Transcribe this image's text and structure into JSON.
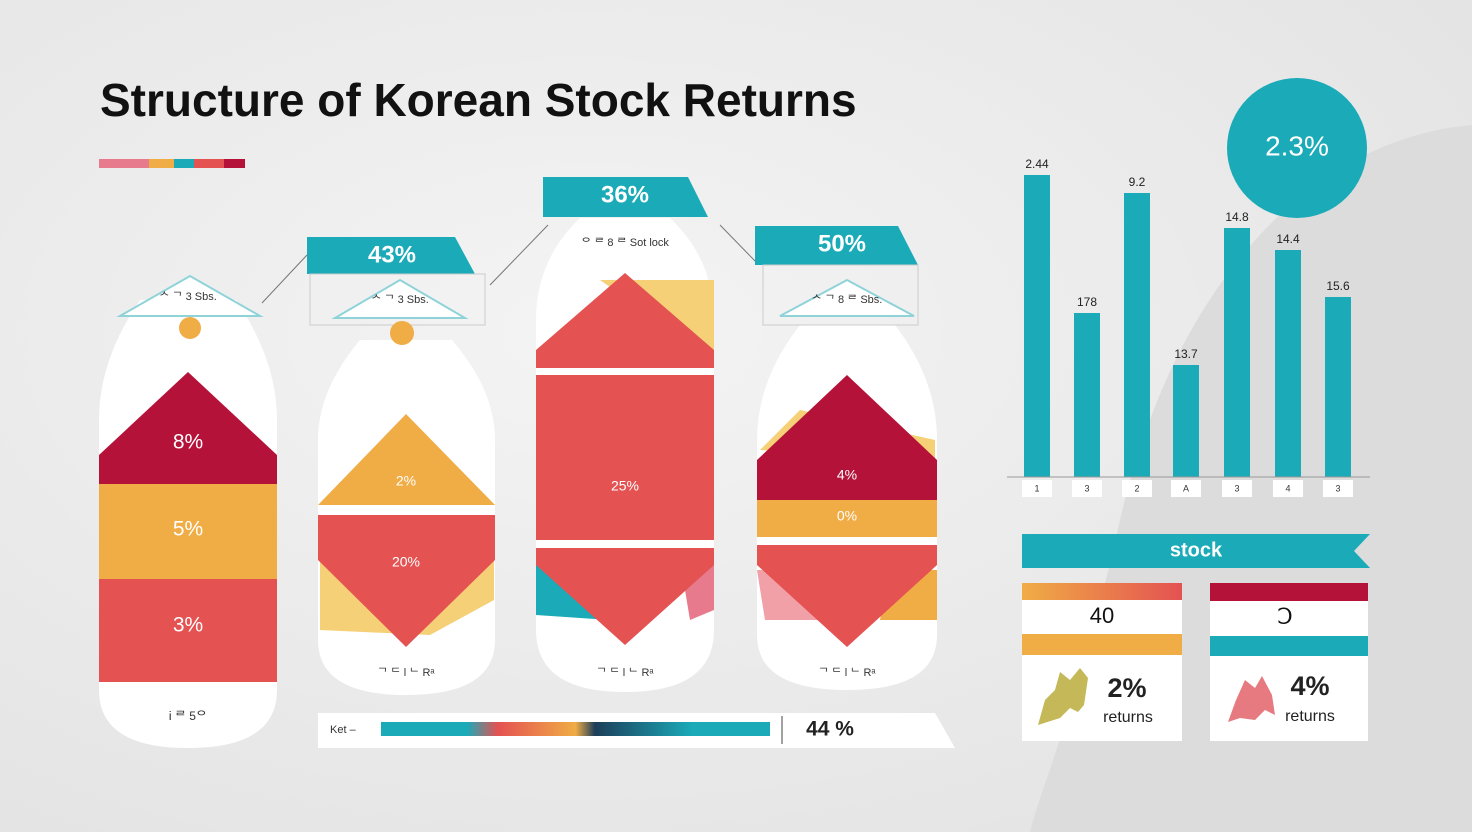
{
  "header": {
    "title": "Structure of Korean Stock Returns"
  },
  "columns": [
    {
      "banner": null,
      "card": "ᄉ ᄀ 3 Sbs.",
      "segments": [
        "8%",
        "5%",
        "3%"
      ],
      "footer": "Ꭵ ᄅ 5ᄋ"
    },
    {
      "banner": "43%",
      "card": "ᄉ ᄀ 3 Sbs.",
      "segments": [
        "2%",
        "20%"
      ],
      "footer": "ᄀ ᄃ l ᄂ Rᵃ"
    },
    {
      "banner": "36%",
      "card": "ᄋ ᄅ 8 ᄅ Sot lock",
      "segments": [
        "25%"
      ],
      "footer": "ᄀ ᄃ l ᄂ Rᵃ"
    },
    {
      "banner": "50%",
      "card": "ᄉ ᄀ 8 ᄅ Sbs.",
      "segments": [
        "4%",
        "0%"
      ],
      "footer": "ᄀ ᄃ l ᄂ Rᵃ"
    }
  ],
  "progress": {
    "label": "Ket –",
    "value": "44 %"
  },
  "highlight": "2.3%",
  "bars": {
    "labels": [
      "2.44",
      "178",
      "9.2",
      "13.7",
      "14.8",
      "14.4",
      "15.6"
    ],
    "ticks": [
      "1",
      "3",
      "2",
      "A",
      "3",
      "4",
      "3"
    ]
  },
  "stock": {
    "title": "stock",
    "cards": [
      {
        "header": "40",
        "value": "2%",
        "caption": "returns"
      },
      {
        "header": "Ↄ",
        "value": "4%",
        "caption": "returns"
      }
    ]
  }
}
